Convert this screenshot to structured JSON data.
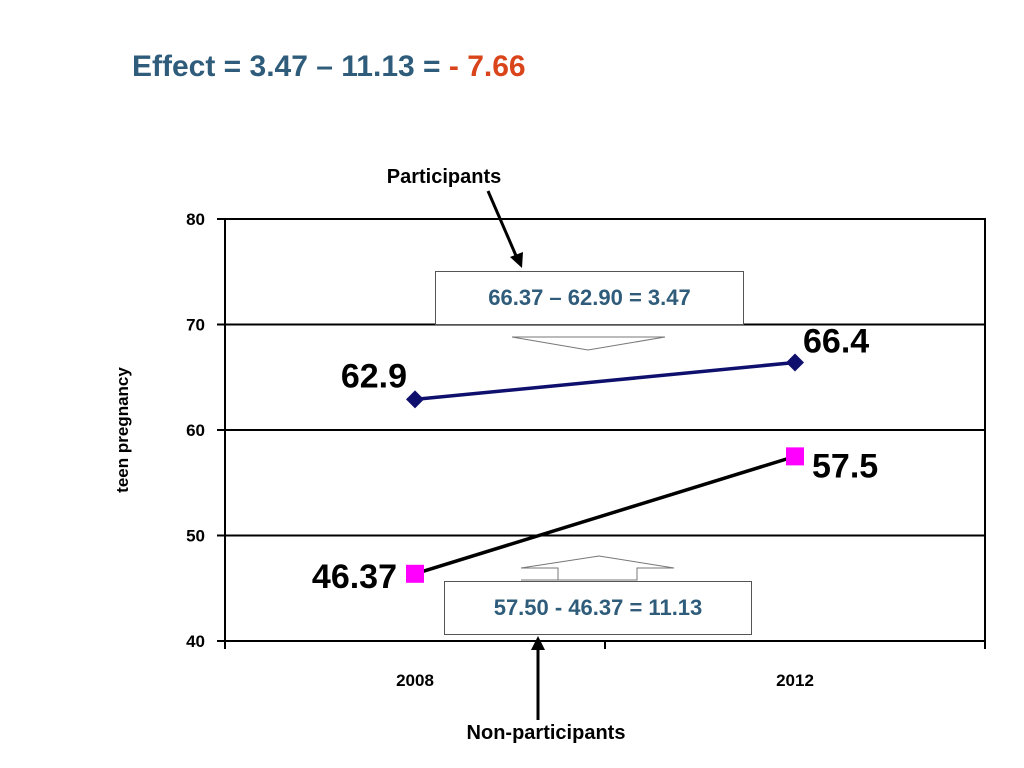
{
  "heading": {
    "prefix": "Effect = 3.47 – 11.13 = ",
    "result": "- 7.66",
    "text_color": "#2E5C7A",
    "result_color": "#D9441A"
  },
  "chart_data": {
    "type": "line",
    "ylabel": "teen pregnancy",
    "xlabel": "",
    "ylim": [
      40,
      80
    ],
    "yticks": [
      40,
      50,
      60,
      70,
      80
    ],
    "categories": [
      "2008",
      "2012"
    ],
    "grid": true,
    "series": [
      {
        "name": "Participants",
        "values": [
          62.9,
          66.4
        ],
        "labels": [
          "62.9",
          "66.4"
        ],
        "color": "#0F0F6E",
        "marker": "diamond",
        "marker_color": "#0F0F6E"
      },
      {
        "name": "Non-participants",
        "values": [
          46.37,
          57.5
        ],
        "labels": [
          "46.37",
          "57.5"
        ],
        "color": "#000000",
        "marker": "square",
        "marker_color": "#FF00FF"
      }
    ],
    "annotations": {
      "participants_calc": "66.37 – 62.90 = 3.47",
      "nonparticipants_calc": "57.50 - 46.37 = 11.13"
    }
  }
}
